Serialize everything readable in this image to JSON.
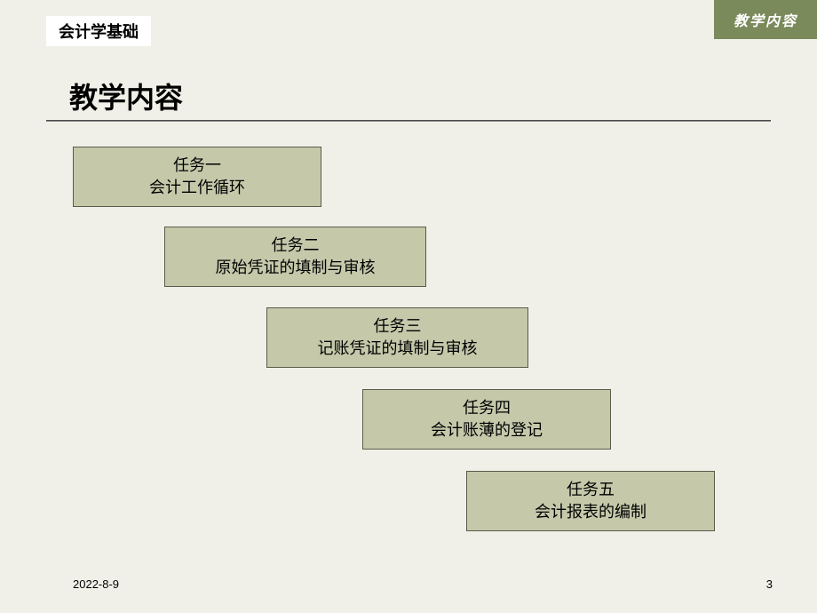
{
  "header": {
    "left_label": "会计学基础",
    "right_label": "教学内容"
  },
  "title": "教学内容",
  "tasks": [
    {
      "heading": "任务一",
      "content": "会计工作循环"
    },
    {
      "heading": "任务二",
      "content": "原始凭证的填制与审核"
    },
    {
      "heading": "任务三",
      "content": "记账凭证的填制与审核"
    },
    {
      "heading": "任务四",
      "content": "会计账薄的登记"
    },
    {
      "heading": "任务五",
      "content": "会计报表的编制"
    }
  ],
  "footer": {
    "date": "2022-8-9",
    "page": "3"
  },
  "styling": {
    "background_color": "#f0f0e8",
    "box_background": "#c5c9aa",
    "box_border": "#5a5a4a",
    "header_right_bg": "#7a8a5a",
    "header_right_fg": "#ffffff",
    "title_fontsize": 32,
    "box_fontsize": 18,
    "footer_fontsize": 13
  }
}
